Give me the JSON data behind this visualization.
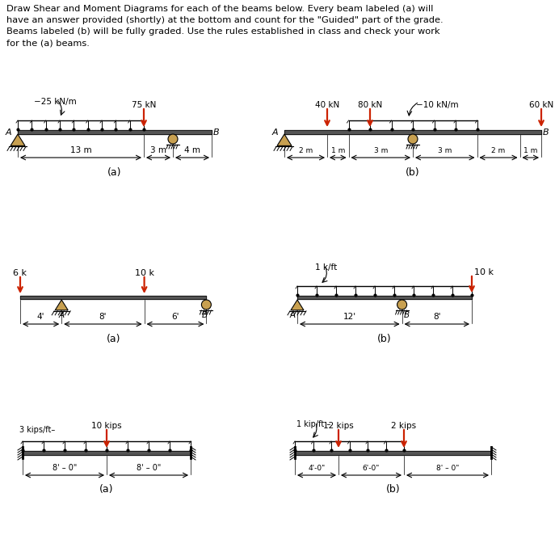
{
  "title": "Draw Shear and Moment Diagrams for each of the beams below. Every beam labeled (a) will\nhave an answer provided (shortly) at the bottom and count for the \"Guided\" part of the grade.\nBeams labeled (b) will be fully graded. Use the rules established in class and check your work\nfor the (a) beams.",
  "bg": "#ffffff",
  "black": "#000000",
  "red": "#cc2200",
  "tan": "#c8a050",
  "gray": "#555555",
  "row1a": {
    "dist_label": "25 kN/m",
    "pt_label": "75 kN",
    "d1": "13 m",
    "d2": "3 m",
    "d3": "4 m",
    "label": "(a)"
  },
  "row1b": {
    "l1": "40 kN",
    "l2": "80 kN",
    "l3": "60 kN",
    "dist_label": "10 kN/m",
    "d1": "2 m",
    "d2": "1 m",
    "d3": "3 m",
    "d4": "3 m",
    "d5": "2 m",
    "d6": "1 m",
    "label": "(b)"
  },
  "row2a": {
    "l1": "6 k",
    "l2": "10 k",
    "d1": "4'",
    "d2": "8'",
    "d3": "6'",
    "label": "(a)"
  },
  "row2b": {
    "dist_label": "1 k/ft",
    "pt_label": "10 k",
    "d1": "12'",
    "d2": "8'",
    "label": "(b)"
  },
  "row3a": {
    "pt_label": "10 kips",
    "dist_label": "3 kips/ft",
    "d1": "8' – 0\"",
    "d2": "8' – 0\"",
    "label": "(a)"
  },
  "row3b": {
    "l1": "12 kips",
    "l2": "2 kips",
    "dist_label": "1 kip/ft",
    "d1": "4'-0\"",
    "d2": "6'-0\"",
    "d3": "8' – 0\"",
    "label": "(b)"
  }
}
